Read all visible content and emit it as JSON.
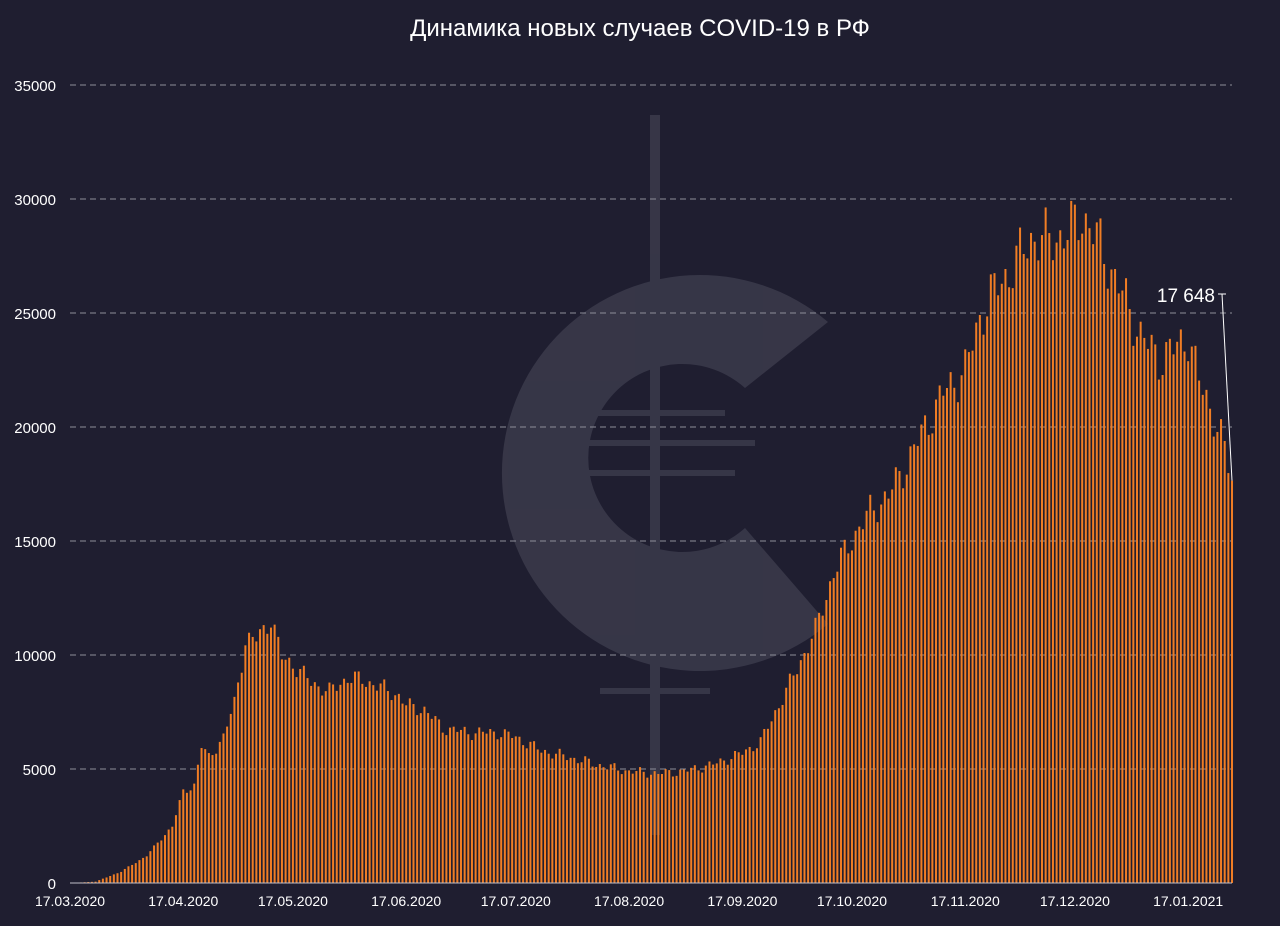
{
  "chart_data": {
    "type": "bar",
    "title": "Динамика новых случаев COVID-19 в РФ",
    "xlabel": "",
    "ylabel": "",
    "ylim": [
      0,
      35000
    ],
    "yticks": [
      0,
      5000,
      10000,
      15000,
      20000,
      25000,
      30000,
      35000
    ],
    "xtick_labels": [
      "17.03.2020",
      "17.04.2020",
      "17.05.2020",
      "17.06.2020",
      "17.07.2020",
      "17.08.2020",
      "17.09.2020",
      "17.10.2020",
      "17.11.2020",
      "17.12.2020",
      "17.01.2021"
    ],
    "grid": "horizontal-dashed",
    "start_date": "2020-03-17",
    "end_date": "2021-01-29",
    "annotation": {
      "text": "17 648",
      "date": "2021-01-29",
      "value": 17648
    },
    "series": [
      {
        "color": "#f07d24",
        "points": [
          [
            "2020-03-17",
            0
          ],
          [
            "2020-03-24",
            60
          ],
          [
            "2020-03-31",
            500
          ],
          [
            "2020-04-07",
            1200
          ],
          [
            "2020-04-14",
            2500
          ],
          [
            "2020-04-17",
            4000
          ],
          [
            "2020-04-20",
            4300
          ],
          [
            "2020-04-22",
            6000
          ],
          [
            "2020-04-24",
            5500
          ],
          [
            "2020-04-28",
            6400
          ],
          [
            "2020-05-01",
            7900
          ],
          [
            "2020-05-04",
            10600
          ],
          [
            "2020-05-07",
            10700
          ],
          [
            "2020-05-11",
            11600
          ],
          [
            "2020-05-14",
            9900
          ],
          [
            "2020-05-17",
            9600
          ],
          [
            "2020-05-22",
            8800
          ],
          [
            "2020-05-27",
            8400
          ],
          [
            "2020-06-01",
            9000
          ],
          [
            "2020-06-05",
            8900
          ],
          [
            "2020-06-10",
            8600
          ],
          [
            "2020-06-15",
            8200
          ],
          [
            "2020-06-17",
            7800
          ],
          [
            "2020-06-22",
            7600
          ],
          [
            "2020-06-27",
            6800
          ],
          [
            "2020-07-04",
            6600
          ],
          [
            "2020-07-12",
            6600
          ],
          [
            "2020-07-17",
            6400
          ],
          [
            "2020-07-24",
            5800
          ],
          [
            "2020-08-01",
            5500
          ],
          [
            "2020-08-08",
            5200
          ],
          [
            "2020-08-17",
            4900
          ],
          [
            "2020-08-25",
            4800
          ],
          [
            "2020-09-01",
            4900
          ],
          [
            "2020-09-09",
            5200
          ],
          [
            "2020-09-17",
            5700
          ],
          [
            "2020-09-22",
            6200
          ],
          [
            "2020-09-27",
            7800
          ],
          [
            "2020-10-02",
            9400
          ],
          [
            "2020-10-07",
            11100
          ],
          [
            "2020-10-12",
            13600
          ],
          [
            "2020-10-17",
            15100
          ],
          [
            "2020-10-22",
            16300
          ],
          [
            "2020-10-27",
            17000
          ],
          [
            "2020-11-01",
            18400
          ],
          [
            "2020-11-06",
            20000
          ],
          [
            "2020-11-11",
            21500
          ],
          [
            "2020-11-17",
            22500
          ],
          [
            "2020-11-21",
            24800
          ],
          [
            "2020-11-25",
            26000
          ],
          [
            "2020-11-30",
            27000
          ],
          [
            "2020-12-05",
            28300
          ],
          [
            "2020-12-10",
            28200
          ],
          [
            "2020-12-15",
            28500
          ],
          [
            "2020-12-19",
            29300
          ],
          [
            "2020-12-24",
            28000
          ],
          [
            "2020-12-28",
            26500
          ],
          [
            "2020-12-31",
            25500
          ],
          [
            "2021-01-04",
            24000
          ],
          [
            "2021-01-09",
            23000
          ],
          [
            "2021-01-13",
            23400
          ],
          [
            "2021-01-17",
            24000
          ],
          [
            "2021-01-20",
            22000
          ],
          [
            "2021-01-24",
            20500
          ],
          [
            "2021-01-27",
            19000
          ],
          [
            "2021-01-29",
            17648
          ]
        ]
      }
    ]
  }
}
